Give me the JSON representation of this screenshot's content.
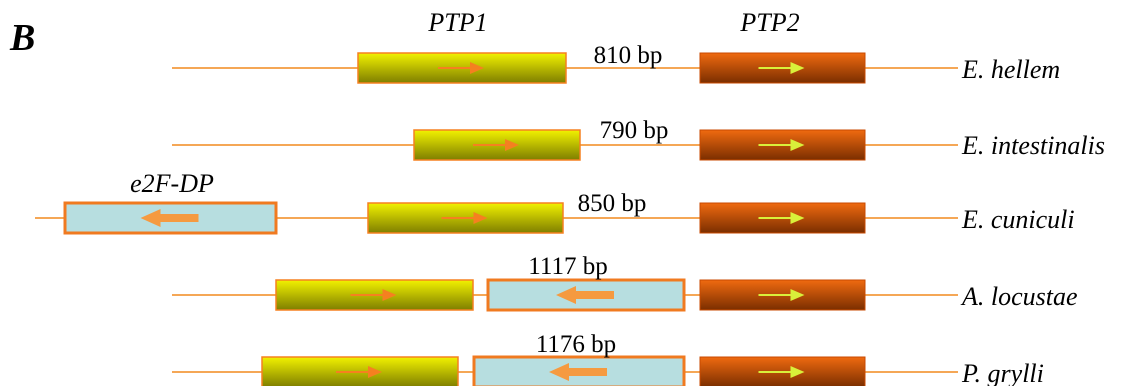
{
  "panel_label": "B",
  "colors": {
    "line": "#F28A1E",
    "ptp1_top": "#F2F200",
    "ptp1_bottom": "#7E7E00",
    "ptp2_top": "#F06A10",
    "ptp2_bottom": "#7A2E00",
    "e2f_fill": "#B7DEE0",
    "e2f_border": "#F07A20",
    "ptp1_arrow": "#F58020",
    "ptp2_arrow": "#D9F03A",
    "e2f_arrow": "#F59A40"
  },
  "gene_labels": {
    "ptp1": "PTP1",
    "ptp2": "PTP2",
    "e2f": "e2F-DP"
  },
  "rows": [
    {
      "species": "E. hellem",
      "spacer": "810 bp",
      "has_e2f_left": false,
      "has_e2f_between": false
    },
    {
      "species": "E. intestinalis",
      "spacer": "790 bp",
      "has_e2f_left": false,
      "has_e2f_between": false
    },
    {
      "species": "E. cuniculi",
      "spacer": "850 bp",
      "has_e2f_left": true,
      "has_e2f_between": false
    },
    {
      "species": "A. locustae",
      "spacer": "1117 bp",
      "has_e2f_left": false,
      "has_e2f_between": true
    },
    {
      "species": "P. grylli",
      "spacer": "1176 bp",
      "has_e2f_left": false,
      "has_e2f_between": true
    }
  ]
}
